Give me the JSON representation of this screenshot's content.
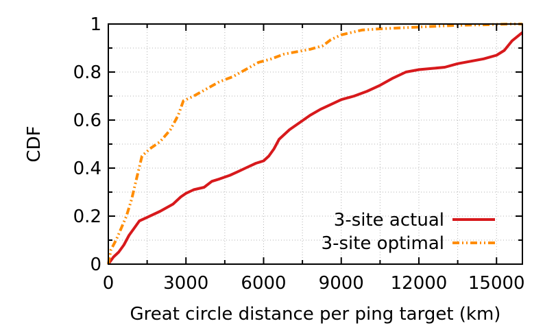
{
  "chart_data": {
    "type": "line",
    "title": "",
    "xlabel": "Great circle distance per ping target (km)",
    "ylabel": "CDF",
    "xlim": [
      0,
      16000
    ],
    "ylim": [
      0,
      1
    ],
    "x_ticks": [
      0,
      3000,
      6000,
      9000,
      12000,
      15000
    ],
    "x_tick_labels": [
      "0",
      "3000",
      "6000",
      "9000",
      "12000",
      "15000"
    ],
    "y_ticks": [
      0,
      0.2,
      0.4,
      0.6,
      0.8,
      1
    ],
    "y_tick_labels": [
      "0",
      "0.2",
      "0.4",
      "0.6",
      "0.8",
      "1"
    ],
    "grid": true,
    "legend_position": "bottom-right",
    "series": [
      {
        "name": "3-site actual",
        "color": "#d7191c",
        "style": "solid",
        "x": [
          0,
          200,
          400,
          600,
          800,
          1000,
          1200,
          1500,
          2000,
          2500,
          2800,
          3000,
          3300,
          3700,
          4000,
          4300,
          4700,
          5000,
          5300,
          5700,
          6000,
          6200,
          6400,
          6600,
          7000,
          7400,
          7800,
          8200,
          8600,
          9000,
          9500,
          10000,
          10500,
          11000,
          11500,
          12000,
          12500,
          13000,
          13500,
          14000,
          14500,
          15000,
          15300,
          15600,
          16000
        ],
        "y": [
          0,
          0.03,
          0.05,
          0.08,
          0.12,
          0.15,
          0.18,
          0.195,
          0.22,
          0.25,
          0.28,
          0.295,
          0.31,
          0.32,
          0.345,
          0.355,
          0.37,
          0.385,
          0.4,
          0.42,
          0.43,
          0.45,
          0.48,
          0.52,
          0.56,
          0.59,
          0.62,
          0.645,
          0.665,
          0.685,
          0.7,
          0.72,
          0.745,
          0.775,
          0.8,
          0.81,
          0.815,
          0.82,
          0.835,
          0.845,
          0.855,
          0.87,
          0.89,
          0.93,
          0.965
        ]
      },
      {
        "name": "3-site optimal",
        "color": "#ff8c00",
        "style": "dash-dot-dot",
        "x": [
          0,
          100,
          300,
          500,
          700,
          900,
          1100,
          1300,
          1600,
          2000,
          2400,
          2700,
          2900,
          3300,
          3800,
          4300,
          4800,
          5300,
          5800,
          6300,
          6800,
          7300,
          7800,
          8300,
          8600,
          9000,
          9400,
          9800,
          10500,
          11500,
          12500,
          13500,
          14500,
          15500,
          16000
        ],
        "y": [
          0,
          0.06,
          0.1,
          0.15,
          0.2,
          0.27,
          0.36,
          0.45,
          0.48,
          0.51,
          0.56,
          0.62,
          0.68,
          0.7,
          0.73,
          0.76,
          0.78,
          0.81,
          0.84,
          0.855,
          0.875,
          0.885,
          0.895,
          0.91,
          0.935,
          0.955,
          0.965,
          0.975,
          0.98,
          0.985,
          0.99,
          0.995,
          0.997,
          1.0,
          1.0
        ]
      }
    ]
  }
}
